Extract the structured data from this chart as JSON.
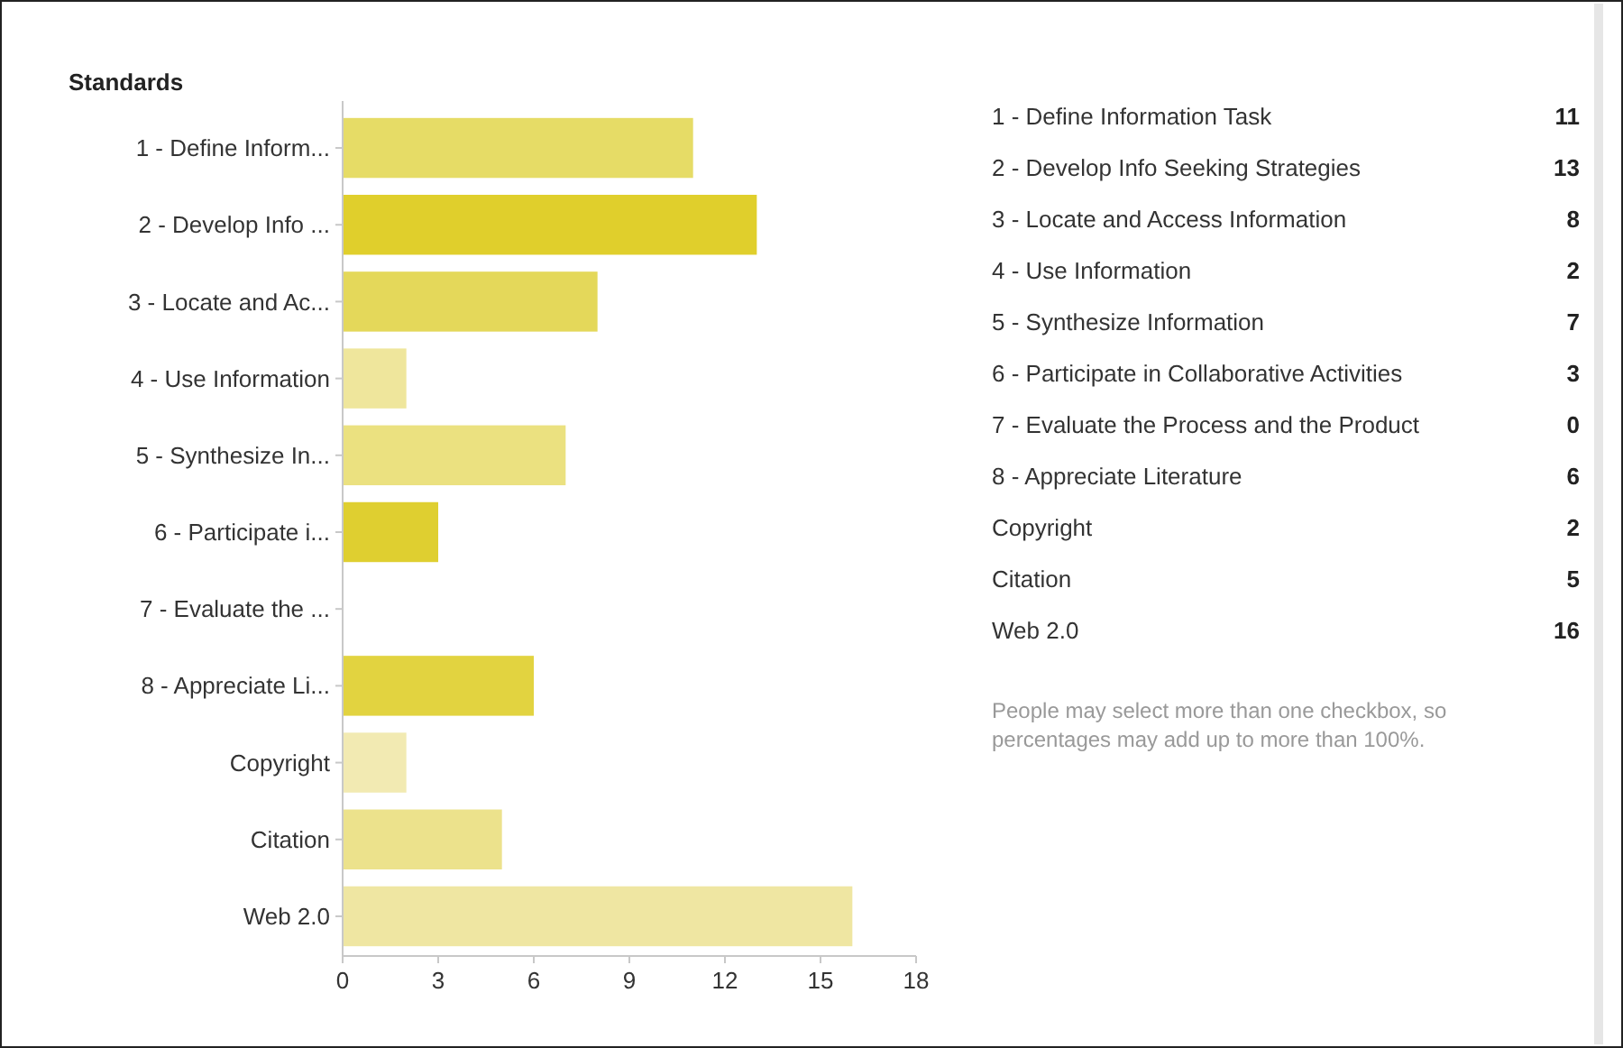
{
  "chart_data": [
    {
      "type": "bar",
      "orientation": "horizontal",
      "title": "Standards",
      "categories": [
        "1 - Define Inform...",
        "2 - Develop Info ...",
        "3 - Locate and Ac...",
        "4 - Use Information",
        "5 - Synthesize In...",
        "6 - Participate i...",
        "7 - Evaluate the ...",
        "8 - Appreciate Li...",
        "Copyright",
        "Citation",
        "Web 2.0"
      ],
      "values": [
        11,
        13,
        8,
        2,
        7,
        3,
        0,
        6,
        2,
        5,
        16
      ],
      "colors": [
        "#e6dc66",
        "#e0cf2c",
        "#e4d85a",
        "#efe69c",
        "#ebe180",
        "#dfcf30",
        "#e6dc66",
        "#e2d340",
        "#f2eab2",
        "#ece28c",
        "#efe6a2"
      ],
      "xlim": [
        0,
        18
      ],
      "xticks": [
        0,
        3,
        6,
        9,
        12,
        15,
        18
      ]
    },
    {
      "type": "other",
      "categories": [
        "1 - Define Information Task",
        "2 - Develop Info Seeking Strategies",
        "3 - Locate and Access Information",
        "4 - Use Information",
        "5 - Synthesize Information",
        "6 - Participate in Collaborative Activities",
        "7 - Evaluate the Process and the Product",
        "8 - Appreciate Literature",
        "Copyright",
        "Citation",
        "Web 2.0"
      ],
      "values": [
        11,
        13,
        8,
        2,
        7,
        3,
        0,
        6,
        2,
        5,
        16
      ],
      "data_labels": true,
      "annotations": [
        "People may select more than one checkbox, so percentages may add up to more than 100%."
      ]
    }
  ]
}
